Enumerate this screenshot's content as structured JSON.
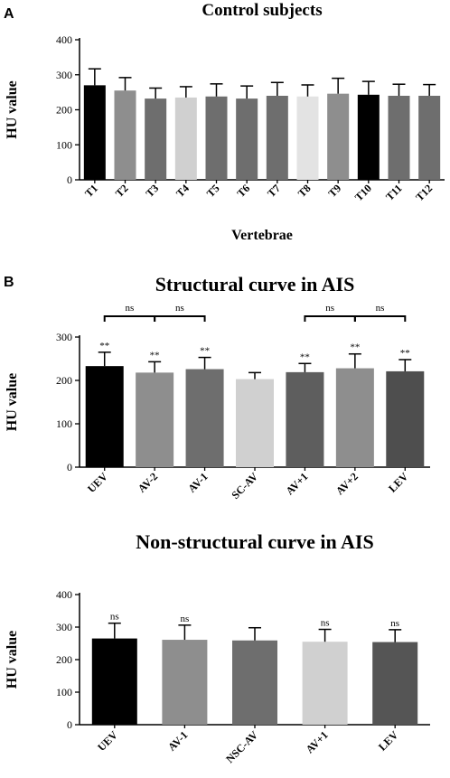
{
  "panels": {
    "a": {
      "letter": "A"
    },
    "b": {
      "letter": "B"
    }
  },
  "chart_data": [
    {
      "type": "bar",
      "title": "Control subjects",
      "xlabel": "Vertebrae",
      "ylabel": "HU value",
      "ylim": [
        0,
        400
      ],
      "yticks": [
        0,
        100,
        200,
        300,
        400
      ],
      "grid": false,
      "categories": [
        "T1",
        "T2",
        "T3",
        "T4",
        "T5",
        "T6",
        "T7",
        "T8",
        "T9",
        "T10",
        "T11",
        "T12"
      ],
      "values": [
        270,
        255,
        232,
        235,
        238,
        232,
        240,
        238,
        246,
        243,
        240,
        240
      ],
      "errors": [
        47,
        37,
        30,
        31,
        36,
        36,
        38,
        33,
        44,
        38,
        33,
        32
      ],
      "colors": [
        "#000000",
        "#8e8e8e",
        "#6e6e6e",
        "#d0d0d0",
        "#6e6e6e",
        "#6e6e6e",
        "#6e6e6e",
        "#e3e3e3",
        "#8e8e8e",
        "#000000",
        "#6e6e6e",
        "#6e6e6e"
      ]
    },
    {
      "type": "bar",
      "title": "Structural curve in AIS",
      "xlabel": "",
      "ylabel": "HU value",
      "ylim": [
        0,
        300
      ],
      "yticks": [
        0,
        100,
        200,
        300
      ],
      "grid": false,
      "categories": [
        "UEV",
        "AV-2",
        "AV-1",
        "SC-AV",
        "AV+1",
        "AV+2",
        "LEV"
      ],
      "values": [
        233,
        218,
        226,
        203,
        219,
        228,
        221
      ],
      "errors": [
        32,
        25,
        27,
        15,
        20,
        33,
        27
      ],
      "colors": [
        "#000000",
        "#8e8e8e",
        "#6e6e6e",
        "#d0d0d0",
        "#5e5e5e",
        "#8e8e8e",
        "#4e4e4e"
      ],
      "annotations": [
        "**",
        "**",
        "**",
        "",
        "**",
        "**",
        "**"
      ],
      "brackets": [
        {
          "from": 0,
          "to": 1,
          "label": "ns"
        },
        {
          "from": 1,
          "to": 2,
          "label": "ns"
        },
        {
          "from": 4,
          "to": 5,
          "label": "ns"
        },
        {
          "from": 5,
          "to": 6,
          "label": "ns"
        }
      ]
    },
    {
      "type": "bar",
      "title": "Non-structural curve in AIS",
      "xlabel": "",
      "ylabel": "HU value",
      "ylim": [
        0,
        400
      ],
      "yticks": [
        0,
        100,
        200,
        300,
        400
      ],
      "grid": false,
      "categories": [
        "UEV",
        "AV-1",
        "NSC-AV",
        "AV+1",
        "LEV"
      ],
      "values": [
        265,
        261,
        259,
        255,
        254
      ],
      "errors": [
        47,
        45,
        39,
        38,
        38
      ],
      "colors": [
        "#000000",
        "#8e8e8e",
        "#6e6e6e",
        "#d0d0d0",
        "#555555"
      ],
      "annotations": [
        "ns",
        "ns",
        "",
        "ns",
        "ns"
      ]
    }
  ]
}
